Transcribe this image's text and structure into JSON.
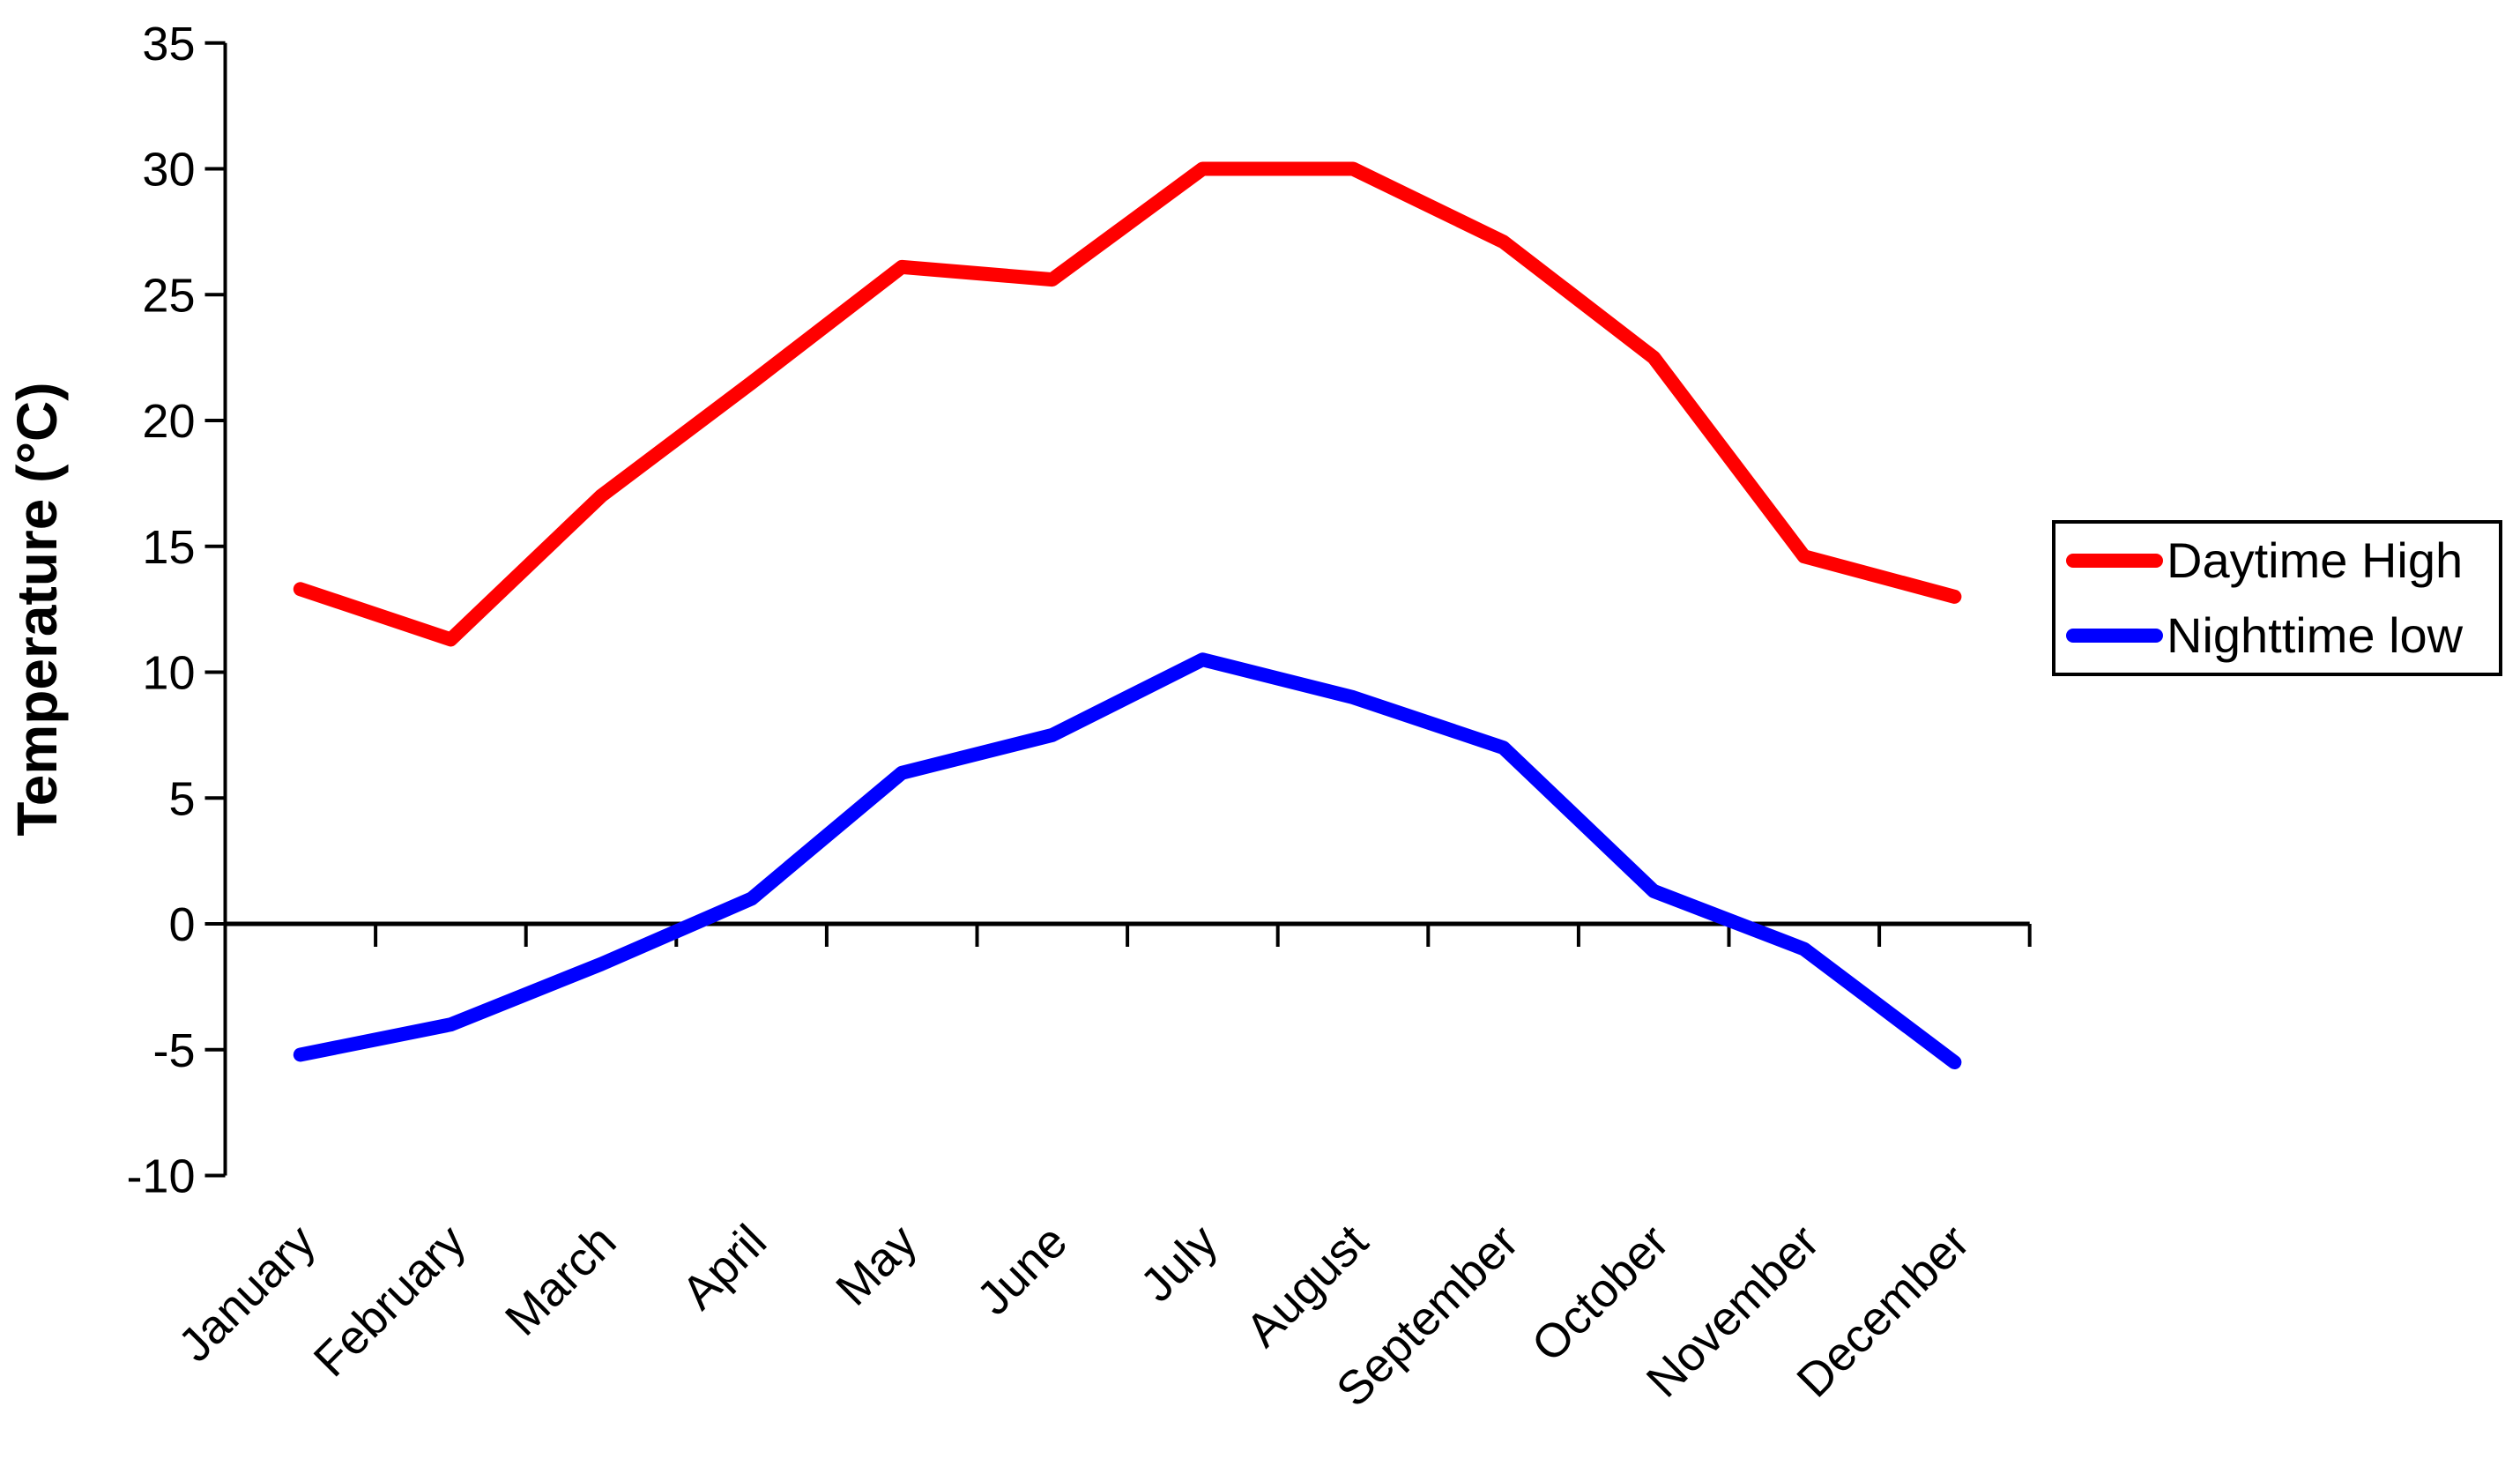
{
  "chart_data": {
    "type": "line",
    "title": "",
    "ylabel": "Temperature (°C)",
    "xlabel": "",
    "ylim": [
      -10,
      35
    ],
    "ytick_step": 5,
    "y_ticks": [
      35,
      30,
      25,
      20,
      15,
      10,
      5,
      0,
      -5,
      -10
    ],
    "grid": false,
    "zero_line": true,
    "legend_position": "right",
    "axis_color": "#000000",
    "background_color": "#ffffff",
    "categories": [
      "January",
      "February",
      "March",
      "April",
      "May",
      "June",
      "July",
      "August",
      "September",
      "October",
      "November",
      "December"
    ],
    "series": [
      {
        "name": "Daytime High",
        "color": "#ff0000",
        "values": [
          13.3,
          11.3,
          17.0,
          21.5,
          26.1,
          25.6,
          30.0,
          30.0,
          27.1,
          22.5,
          14.6,
          13.0
        ]
      },
      {
        "name": "Nighttime low",
        "color": "#0000ff",
        "values": [
          -5.2,
          -4.0,
          -1.6,
          1.0,
          6.0,
          7.5,
          10.5,
          9.0,
          7.0,
          1.3,
          -1.0,
          -5.5
        ]
      }
    ]
  },
  "legend": {
    "items": [
      {
        "label": "Daytime High",
        "color": "#ff0000"
      },
      {
        "label": "Nighttime low",
        "color": "#0000ff"
      }
    ]
  }
}
